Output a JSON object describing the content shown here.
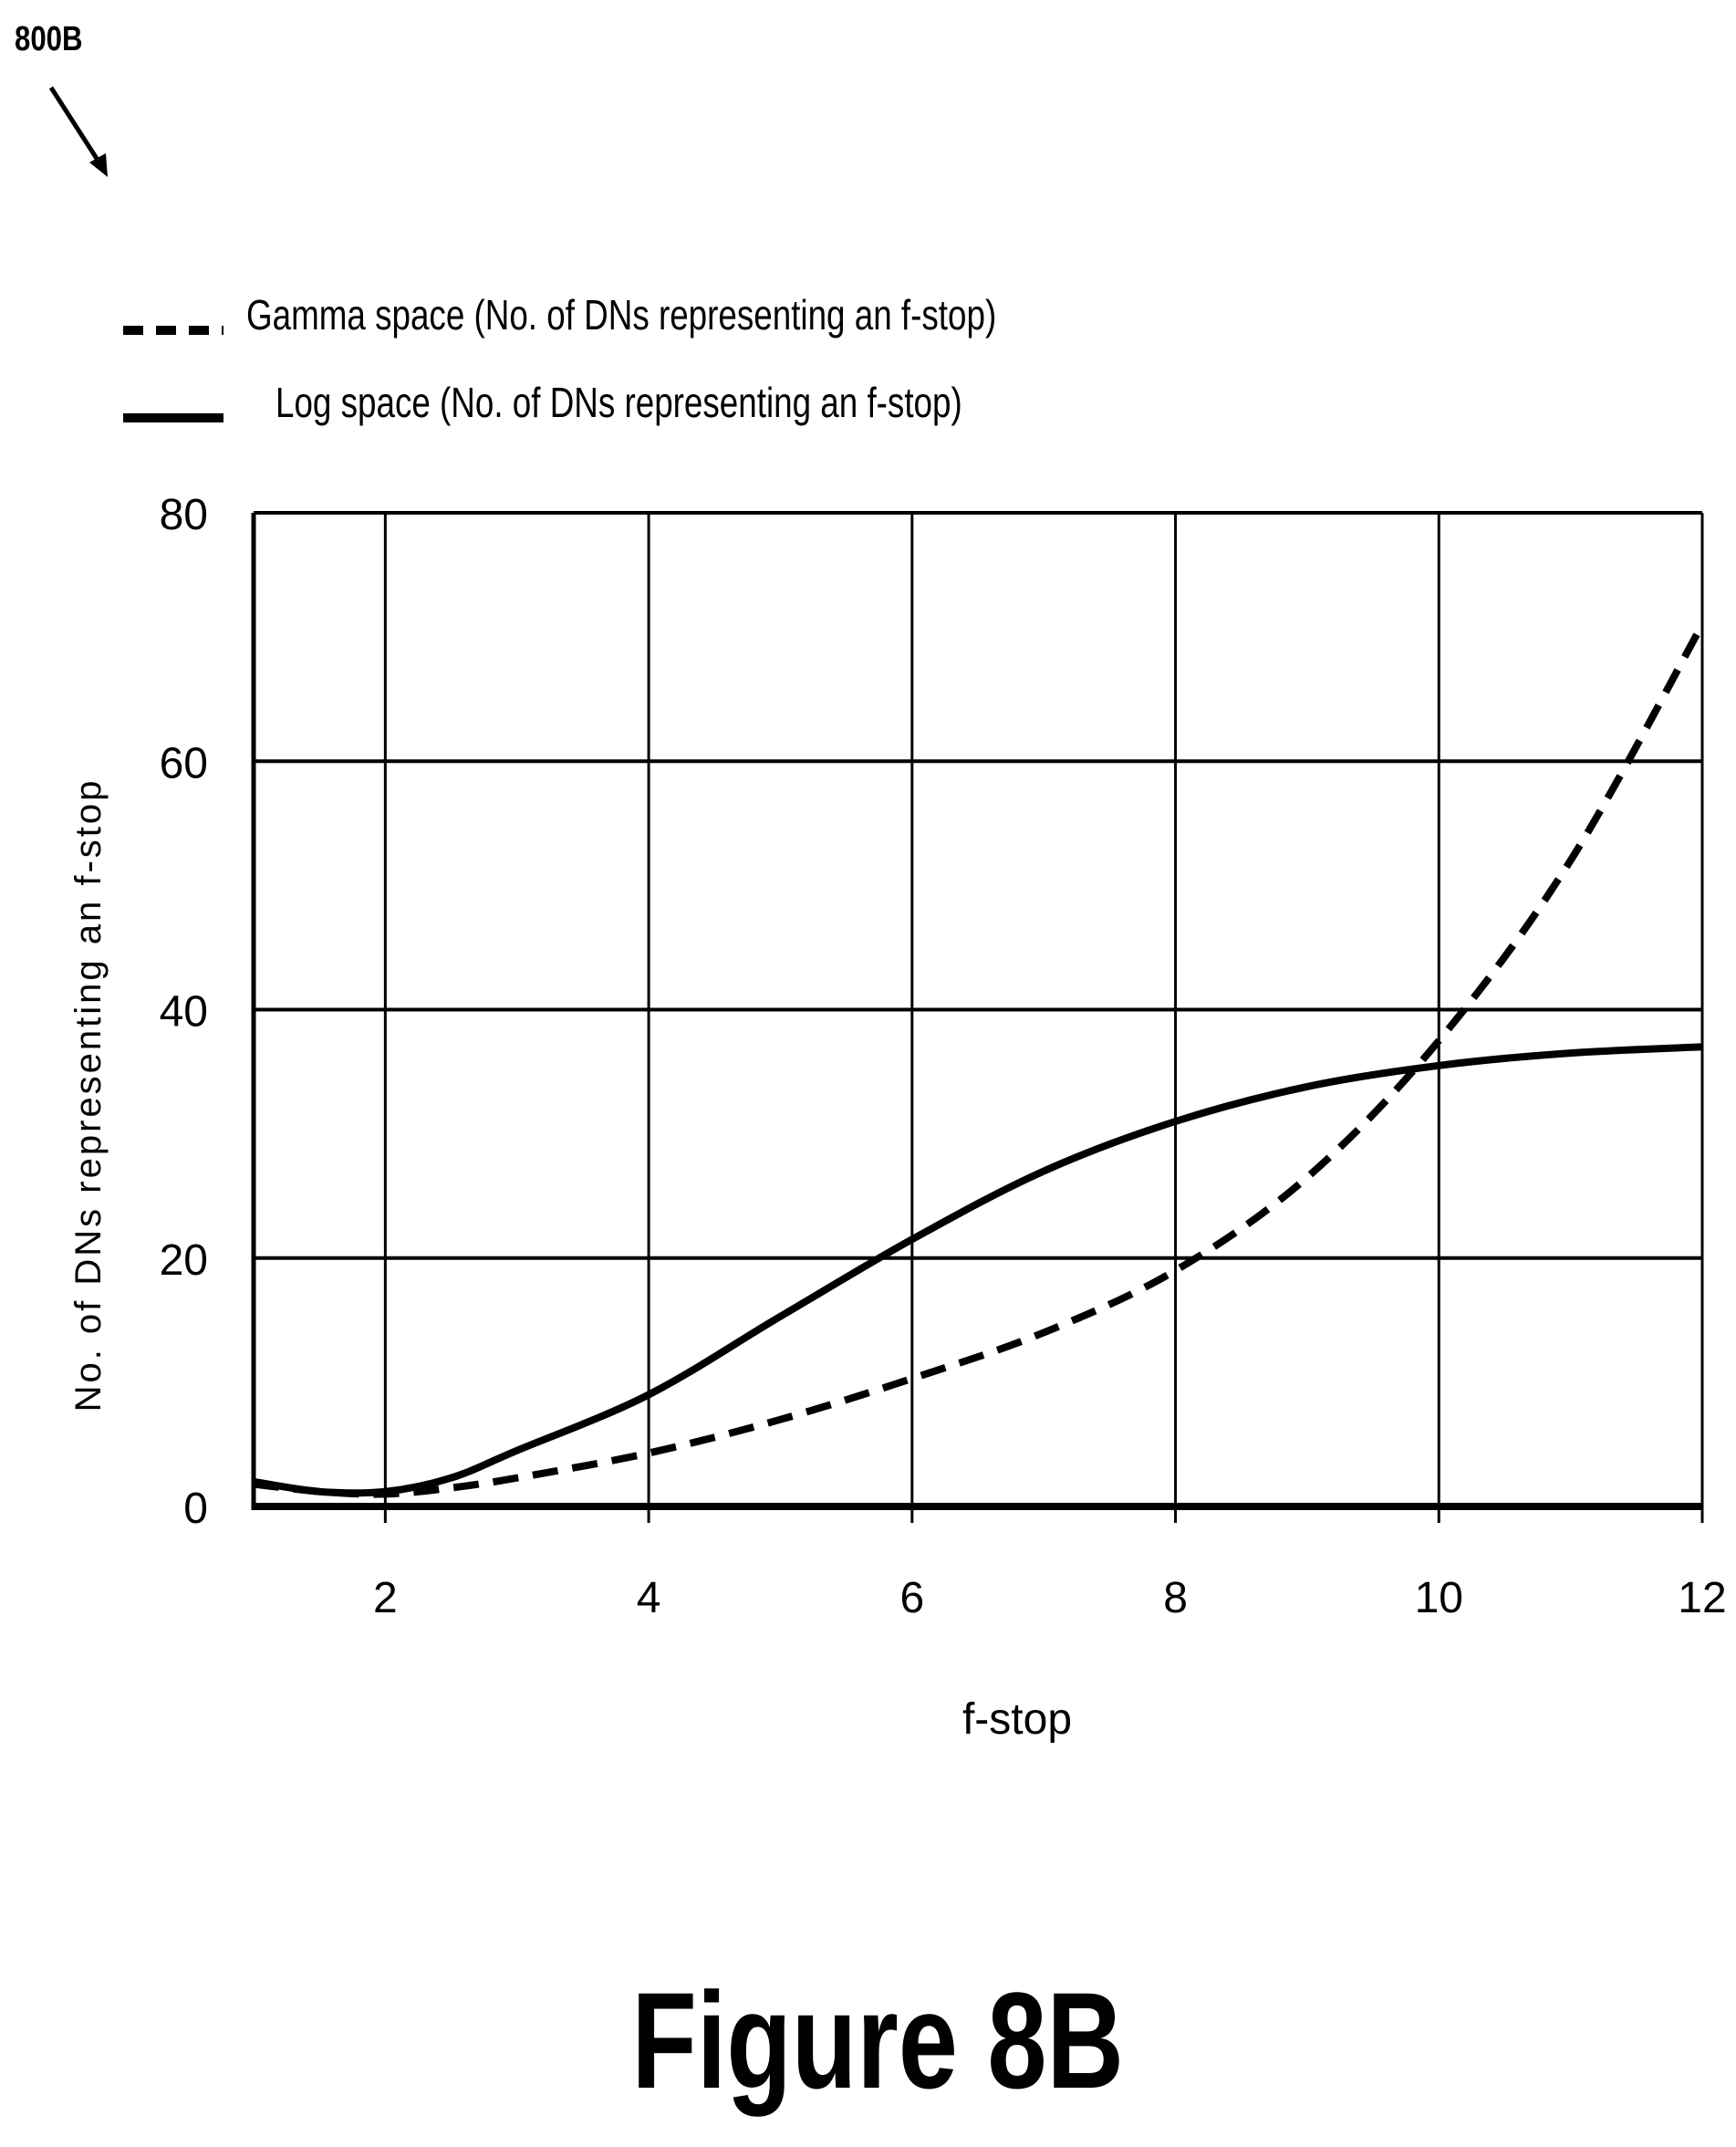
{
  "figure_ref": "800B",
  "figure_caption": "Figure 8B",
  "chart_data": {
    "type": "line",
    "xlabel": "f-stop",
    "ylabel": "No. of DNs representing an f-stop",
    "xlim": [
      1,
      12
    ],
    "ylim": [
      0,
      80
    ],
    "x_ticks": [
      "2",
      "4",
      "6",
      "8",
      "10",
      "12"
    ],
    "y_ticks": [
      "0",
      "20",
      "40",
      "60",
      "80"
    ],
    "grid": true,
    "legend_placement": "top-left, above plot",
    "series": [
      {
        "name": "Gamma space (No. of DNs representing an f-stop)",
        "style": "dashed",
        "color": "#000000",
        "x": [
          1,
          1.5,
          2,
          2.5,
          3,
          4,
          5,
          6,
          7,
          8,
          9,
          10,
          11,
          12
        ],
        "y": [
          1.8,
          1.2,
          1.0,
          1.5,
          2.3,
          4.3,
          7.0,
          10.3,
          14.0,
          19.0,
          26.5,
          37.5,
          52.0,
          71.0
        ]
      },
      {
        "name": "Log space (No. of DNs representing an f-stop)",
        "style": "solid",
        "color": "#000000",
        "x": [
          1,
          1.5,
          2,
          2.5,
          3,
          4,
          5,
          6,
          7,
          8,
          9,
          10,
          11,
          12
        ],
        "y": [
          2.0,
          1.2,
          1.2,
          2.3,
          4.5,
          9.0,
          15.3,
          21.5,
          27.0,
          31.0,
          33.8,
          35.5,
          36.5,
          37.0
        ]
      }
    ]
  }
}
